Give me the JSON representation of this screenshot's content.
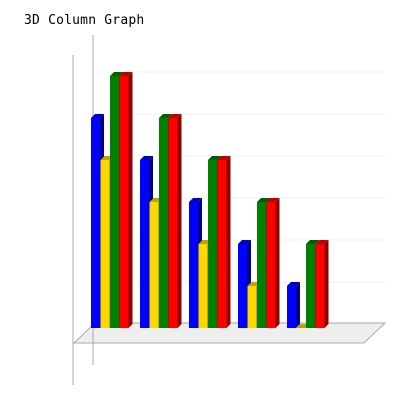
{
  "chart_data": {
    "type": "bar",
    "title": "3D Column Graph",
    "xlabel": "",
    "ylabel": "",
    "categories": [
      "",
      "",
      "",
      "",
      ""
    ],
    "ylim": [
      0,
      6
    ],
    "grid": true,
    "legend": "none",
    "series": [
      {
        "color": "#0000ff",
        "values": [
          5,
          4,
          3,
          2,
          1
        ]
      },
      {
        "color": "#ffd700",
        "values": [
          4,
          3,
          2,
          1,
          0
        ]
      },
      {
        "color": "#008000",
        "values": [
          6,
          5,
          4,
          3,
          2
        ]
      },
      {
        "color": "#ff0000",
        "values": [
          6,
          5,
          4,
          3,
          2
        ]
      }
    ]
  }
}
